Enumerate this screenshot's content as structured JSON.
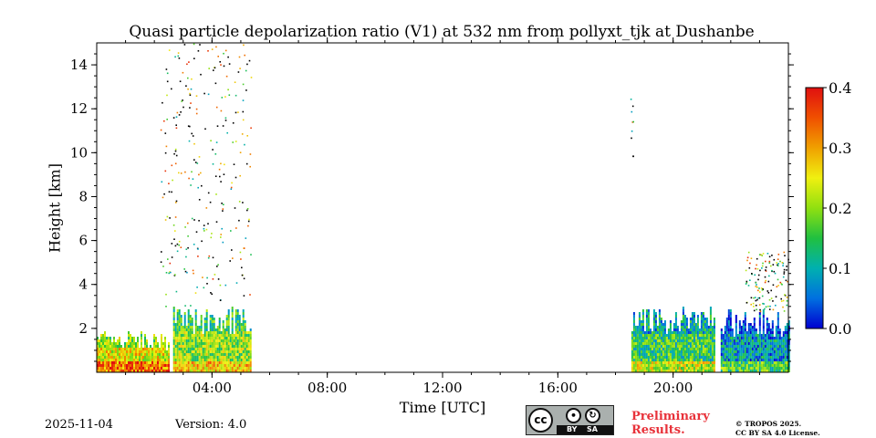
{
  "chart_data": {
    "type": "heatmap",
    "title": "Quasi particle depolarization ratio (V1) at 532 nm from pollyxt_tjk at Dushanbe",
    "xlabel": "Time [UTC]",
    "ylabel": "Height [km]",
    "xlim": [
      0,
      24
    ],
    "ylim": [
      0,
      15
    ],
    "x_ticks": [
      {
        "value": 4,
        "label": "04:00"
      },
      {
        "value": 8,
        "label": "08:00"
      },
      {
        "value": 12,
        "label": "12:00"
      },
      {
        "value": 16,
        "label": "16:00"
      },
      {
        "value": 20,
        "label": "20:00"
      }
    ],
    "y_ticks": [
      {
        "value": 2,
        "label": "2"
      },
      {
        "value": 4,
        "label": "4"
      },
      {
        "value": 6,
        "label": "6"
      },
      {
        "value": 8,
        "label": "8"
      },
      {
        "value": 10,
        "label": "10"
      },
      {
        "value": 12,
        "label": "12"
      },
      {
        "value": 14,
        "label": "14"
      }
    ],
    "colorbar": {
      "min": 0.0,
      "max": 0.4,
      "ticks": [
        {
          "value": 0.0,
          "label": "0.0"
        },
        {
          "value": 0.1,
          "label": "0.1"
        },
        {
          "value": 0.2,
          "label": "0.2"
        },
        {
          "value": 0.3,
          "label": "0.3"
        },
        {
          "value": 0.4,
          "label": "0.4"
        }
      ],
      "colormap": [
        "#0000d0",
        "#0070e0",
        "#00b0b0",
        "#20c040",
        "#90e010",
        "#f0f010",
        "#f0a000",
        "#f05000",
        "#e01010"
      ]
    },
    "data_segments": [
      {
        "start": 0.0,
        "end": 2.5,
        "top_km": 1.8,
        "typical_ratio": 0.25
      },
      {
        "start": 2.65,
        "end": 5.35,
        "top_km": 3.0,
        "typical_ratio": 0.2
      },
      {
        "start": 18.55,
        "end": 21.45,
        "top_km": 2.9,
        "typical_ratio": 0.15
      },
      {
        "start": 21.65,
        "end": 24.0,
        "top_km": 2.8,
        "typical_ratio": 0.08
      }
    ],
    "scattered_points": [
      {
        "start": 2.2,
        "end": 5.35,
        "min_km": 3.0,
        "max_km": 15.0,
        "description": "sparse speckle up to 15 km"
      },
      {
        "start": 18.5,
        "end": 18.6,
        "min_km": 9.8,
        "max_km": 12.7,
        "description": "isolated points"
      },
      {
        "start": 22.5,
        "end": 24.0,
        "min_km": 2.8,
        "max_km": 5.5,
        "description": "sparse speckle"
      }
    ]
  },
  "footer": {
    "date": "2025-11-04",
    "version": "Version: 4.0",
    "preliminary_line1": "Preliminary",
    "preliminary_line2": "Results.",
    "copyright_line1": "© TROPOS 2025.",
    "copyright_line2": "CC BY SA 4.0 License.",
    "license_badge": {
      "cc": "cc",
      "by": "BY",
      "sa": "SA"
    }
  }
}
